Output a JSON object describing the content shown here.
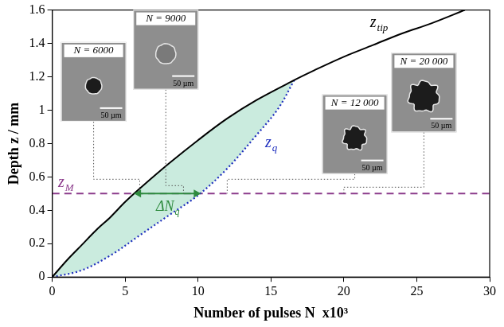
{
  "chart_data": {
    "type": "line",
    "x_label": "Number of pulses N  x10³",
    "y_label": "Depth z / mm",
    "xlim": [
      0,
      30
    ],
    "xticks": [
      0,
      5,
      10,
      15,
      20,
      25,
      30
    ],
    "ylim": [
      0,
      1.6
    ],
    "yticks": [
      0,
      0.2,
      0.4,
      0.6,
      0.8,
      1,
      1.2,
      1.4,
      1.6
    ],
    "grid": false,
    "series": [
      {
        "color": "#000000",
        "line_style": "solid",
        "label": {
          "text": "z",
          "subscript": "tip",
          "x": 21.8,
          "y": 1.5
        },
        "x": [
          0,
          1,
          2,
          3,
          4,
          5,
          6,
          8,
          10,
          12,
          14,
          16.6,
          18,
          20,
          22,
          24,
          26,
          28.3
        ],
        "values": [
          0,
          0.1,
          0.19,
          0.28,
          0.36,
          0.45,
          0.53,
          0.68,
          0.82,
          0.95,
          1.06,
          1.18,
          1.24,
          1.32,
          1.39,
          1.46,
          1.52,
          1.6
        ]
      },
      {
        "color": "#1f2fbf",
        "line_style": "dotted",
        "label": {
          "text": "z",
          "subscript": "q",
          "x": 14.6,
          "y": 0.78
        },
        "x": [
          0,
          2,
          4,
          6,
          8,
          10,
          12,
          14,
          15.5,
          16.6
        ],
        "values": [
          0,
          0.04,
          0.13,
          0.25,
          0.37,
          0.49,
          0.65,
          0.85,
          1.01,
          1.18
        ]
      },
      {
        "color": "#8b3a8b",
        "line_style": "dashed",
        "label": {
          "text": "z",
          "subscript": "M",
          "x": 0.4,
          "y": 0.54
        },
        "x": [
          0,
          30
        ],
        "values": [
          0.5,
          0.5
        ]
      }
    ],
    "annotations": [
      {
        "type": "arrow",
        "x": [
          5.6,
          10.2
        ],
        "y": 0.5,
        "color": "#2e8b3e",
        "text": "ΔN",
        "subscript": "q"
      }
    ],
    "insets": [
      {
        "label": "N = 6000",
        "N": 6,
        "z": 0.5,
        "scale_bar": "50 µm"
      },
      {
        "label": "N = 9000",
        "N": 9,
        "z": 0.5,
        "scale_bar": "50 µm"
      },
      {
        "label": "N = 12 000",
        "N": 12,
        "z": 0.5,
        "scale_bar": "50 µm"
      },
      {
        "label": "N = 20 000",
        "N": 20,
        "z": 0.5,
        "scale_bar": "50 µm"
      }
    ]
  }
}
